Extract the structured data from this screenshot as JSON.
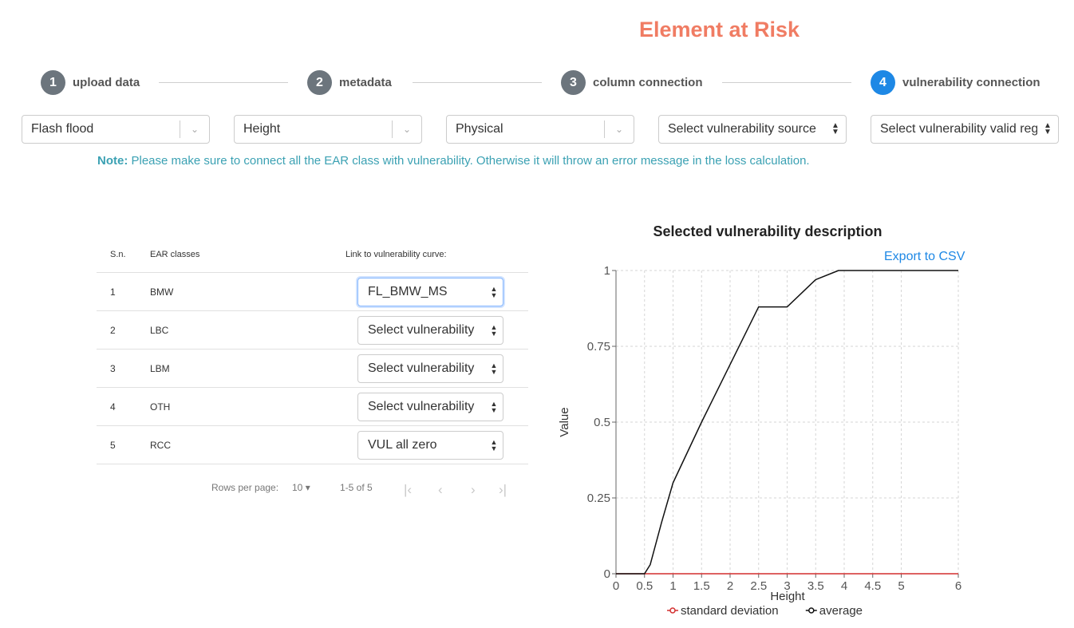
{
  "page_title": "Element at Risk",
  "steps": [
    {
      "num": "1",
      "label": "upload data",
      "active": false
    },
    {
      "num": "2",
      "label": "metadata",
      "active": false
    },
    {
      "num": "3",
      "label": "column connection",
      "active": false
    },
    {
      "num": "4",
      "label": "vulnerability connection",
      "active": true
    }
  ],
  "filters": {
    "hazard": "Flash flood",
    "intensity": "Height",
    "vulnerability_type": "Physical",
    "vulnerability_source": "Select vulnerability source",
    "valid_region": "Select vulnerability valid region"
  },
  "note": {
    "label": "Note:",
    "text": "Please make sure to connect all the EAR class with vulnerability. Otherwise it will throw an error message in the loss calculation."
  },
  "table": {
    "headers": {
      "sn": "S.n.",
      "ear": "EAR classes",
      "link": "Link to vulnerability curve:"
    },
    "rows": [
      {
        "sn": "1",
        "ear": "BMW",
        "vuln": "FL_BMW_MS"
      },
      {
        "sn": "2",
        "ear": "LBC",
        "vuln": "Select vulnerability"
      },
      {
        "sn": "3",
        "ear": "LBM",
        "vuln": "Select vulnerability"
      },
      {
        "sn": "4",
        "ear": "OTH",
        "vuln": "Select vulnerability"
      },
      {
        "sn": "5",
        "ear": "RCC",
        "vuln": "VUL all zero"
      }
    ],
    "pagination": {
      "rows_label": "Rows per page:",
      "rows_value": "10",
      "range": "1-5 of 5"
    }
  },
  "chart": {
    "export_label": "Export to CSV"
  },
  "chart_data": {
    "type": "line",
    "title": "Selected vulnerability description",
    "xlabel": "Height",
    "ylabel": "Value",
    "xlim": [
      0,
      6
    ],
    "ylim": [
      0,
      1
    ],
    "xticks": [
      "0",
      "0.5",
      "1",
      "1.5",
      "2",
      "2.5",
      "3",
      "3.5",
      "4",
      "4.5",
      "5",
      "6"
    ],
    "yticks": [
      "0",
      "0.25",
      "0.5",
      "0.75",
      "1"
    ],
    "grid": true,
    "legend_position": "bottom",
    "series": [
      {
        "name": "standard deviation",
        "color": "#d32f2f",
        "x": [
          0,
          6
        ],
        "y": [
          0,
          0
        ]
      },
      {
        "name": "average",
        "color": "#111111",
        "x": [
          0,
          0.5,
          0.6,
          0.8,
          1.0,
          1.5,
          2.0,
          2.5,
          3.0,
          3.5,
          3.9,
          4.0,
          6.0
        ],
        "y": [
          0,
          0,
          0.03,
          0.17,
          0.3,
          0.5,
          0.69,
          0.88,
          0.88,
          0.97,
          1.0,
          1.0,
          1.0
        ]
      }
    ]
  }
}
